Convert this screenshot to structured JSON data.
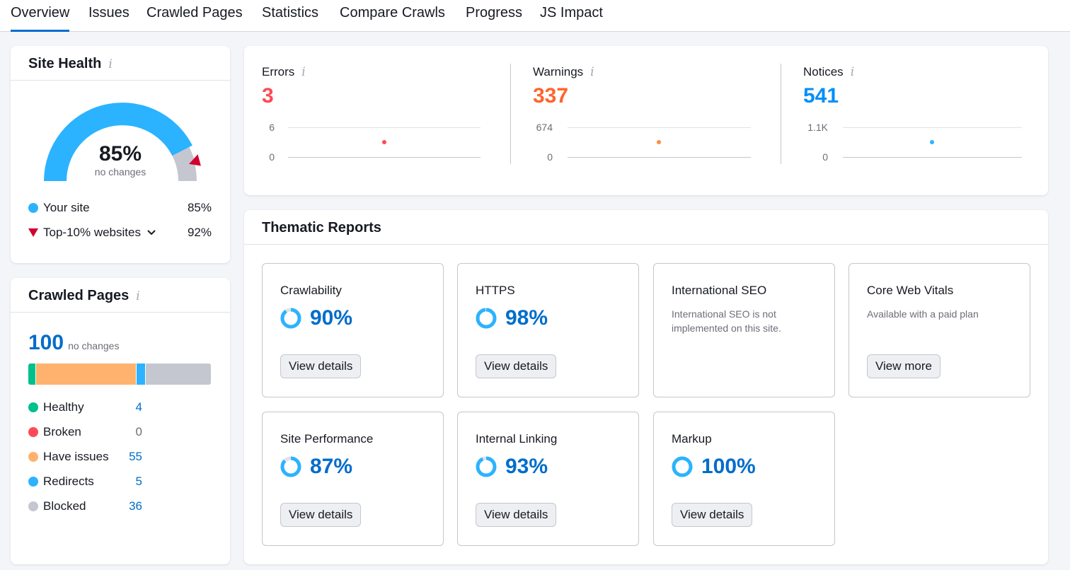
{
  "tabs": [
    {
      "label": "Overview",
      "active": true
    },
    {
      "label": "Issues"
    },
    {
      "label": "Crawled Pages"
    },
    {
      "label": "Statistics"
    },
    {
      "label": "Compare Crawls"
    },
    {
      "label": "Progress"
    },
    {
      "label": "JS Impact"
    }
  ],
  "site_health": {
    "title": "Site Health",
    "info_icon": "i",
    "gauge_value": "85%",
    "gauge_subtitle": "no changes",
    "gauge_fraction": 0.85,
    "legend": [
      {
        "label": "Your site",
        "value": "85%",
        "color": "#2bb3ff"
      },
      {
        "label": "Top-10% websites",
        "value": "92%",
        "color": "#d1002f"
      }
    ]
  },
  "crawled_pages": {
    "title": "Crawled Pages",
    "info_icon": "i",
    "total": "100",
    "total_note": "no changes",
    "items": [
      {
        "label": "Healthy",
        "value": "4",
        "color": "#00c08b"
      },
      {
        "label": "Broken",
        "value": "0",
        "color": "#ff4953"
      },
      {
        "label": "Have issues",
        "value": "55",
        "color": "#ffb26e"
      },
      {
        "label": "Redirects",
        "value": "5",
        "color": "#2bb3ff"
      },
      {
        "label": "Blocked",
        "value": "36",
        "color": "#c4c7cf"
      }
    ]
  },
  "issues": {
    "info_icon": "i",
    "metrics": [
      {
        "label": "Errors",
        "value": "3",
        "color": "#ff4953",
        "axis_max": "6",
        "axis_min": "0"
      },
      {
        "label": "Warnings",
        "value": "337",
        "color": "#ff642d",
        "axis_max": "674",
        "axis_min": "0"
      },
      {
        "label": "Notices",
        "value": "541",
        "color": "#008ff8",
        "axis_max": "1.1K",
        "axis_min": "0"
      }
    ]
  },
  "thematic": {
    "title": "Thematic Reports",
    "reports": [
      {
        "title": "Crawlability",
        "pct": "90%",
        "fraction": 0.9,
        "button": "View details"
      },
      {
        "title": "HTTPS",
        "pct": "98%",
        "fraction": 0.98,
        "button": "View details"
      },
      {
        "title": "International SEO",
        "desc": "International SEO is not implemented on this site."
      },
      {
        "title": "Core Web Vitals",
        "desc": "Available with a paid plan",
        "button": "View more"
      },
      {
        "title": "Site Performance",
        "pct": "87%",
        "fraction": 0.87,
        "button": "View details"
      },
      {
        "title": "Internal Linking",
        "pct": "93%",
        "fraction": 0.93,
        "button": "View details"
      },
      {
        "title": "Markup",
        "pct": "100%",
        "fraction": 1.0,
        "button": "View details"
      }
    ]
  }
}
